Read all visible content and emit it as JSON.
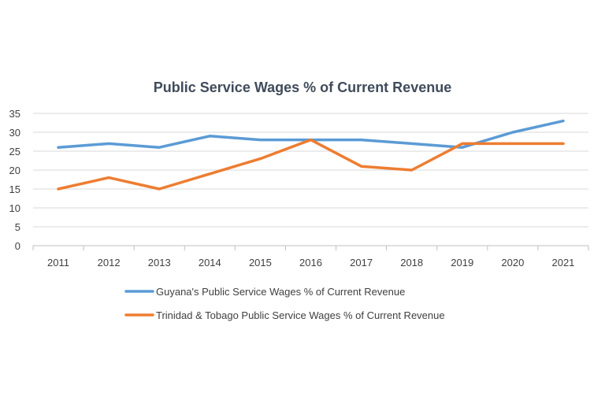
{
  "chart_data": {
    "type": "line",
    "title": "Public Service Wages % of Current Revenue",
    "xlabel": "",
    "ylabel": "",
    "categories": [
      "2011",
      "2012",
      "2013",
      "2014",
      "2015",
      "2016",
      "2017",
      "2018",
      "2019",
      "2020",
      "2021"
    ],
    "ylim": [
      0,
      35
    ],
    "yticks": [
      0,
      5,
      10,
      15,
      20,
      25,
      30,
      35
    ],
    "grid": true,
    "legend_position": "bottom",
    "series": [
      {
        "name": "Guyana's Public Service Wages % of Current Revenue",
        "color": "#5B9BD5",
        "values": [
          26,
          27,
          26,
          29,
          28,
          28,
          28,
          27,
          26,
          30,
          33
        ]
      },
      {
        "name": "Trinidad & Tobago Public Service Wages % of Current Revenue",
        "color": "#ED7D31",
        "values": [
          15,
          18,
          15,
          19,
          23,
          28,
          21,
          20,
          27,
          27,
          27
        ]
      }
    ]
  },
  "colors": {
    "title": "#404b5a",
    "axis_text": "#3f3f3f",
    "grid": "#d9d9d9",
    "axis_line": "#bfbfbf"
  }
}
